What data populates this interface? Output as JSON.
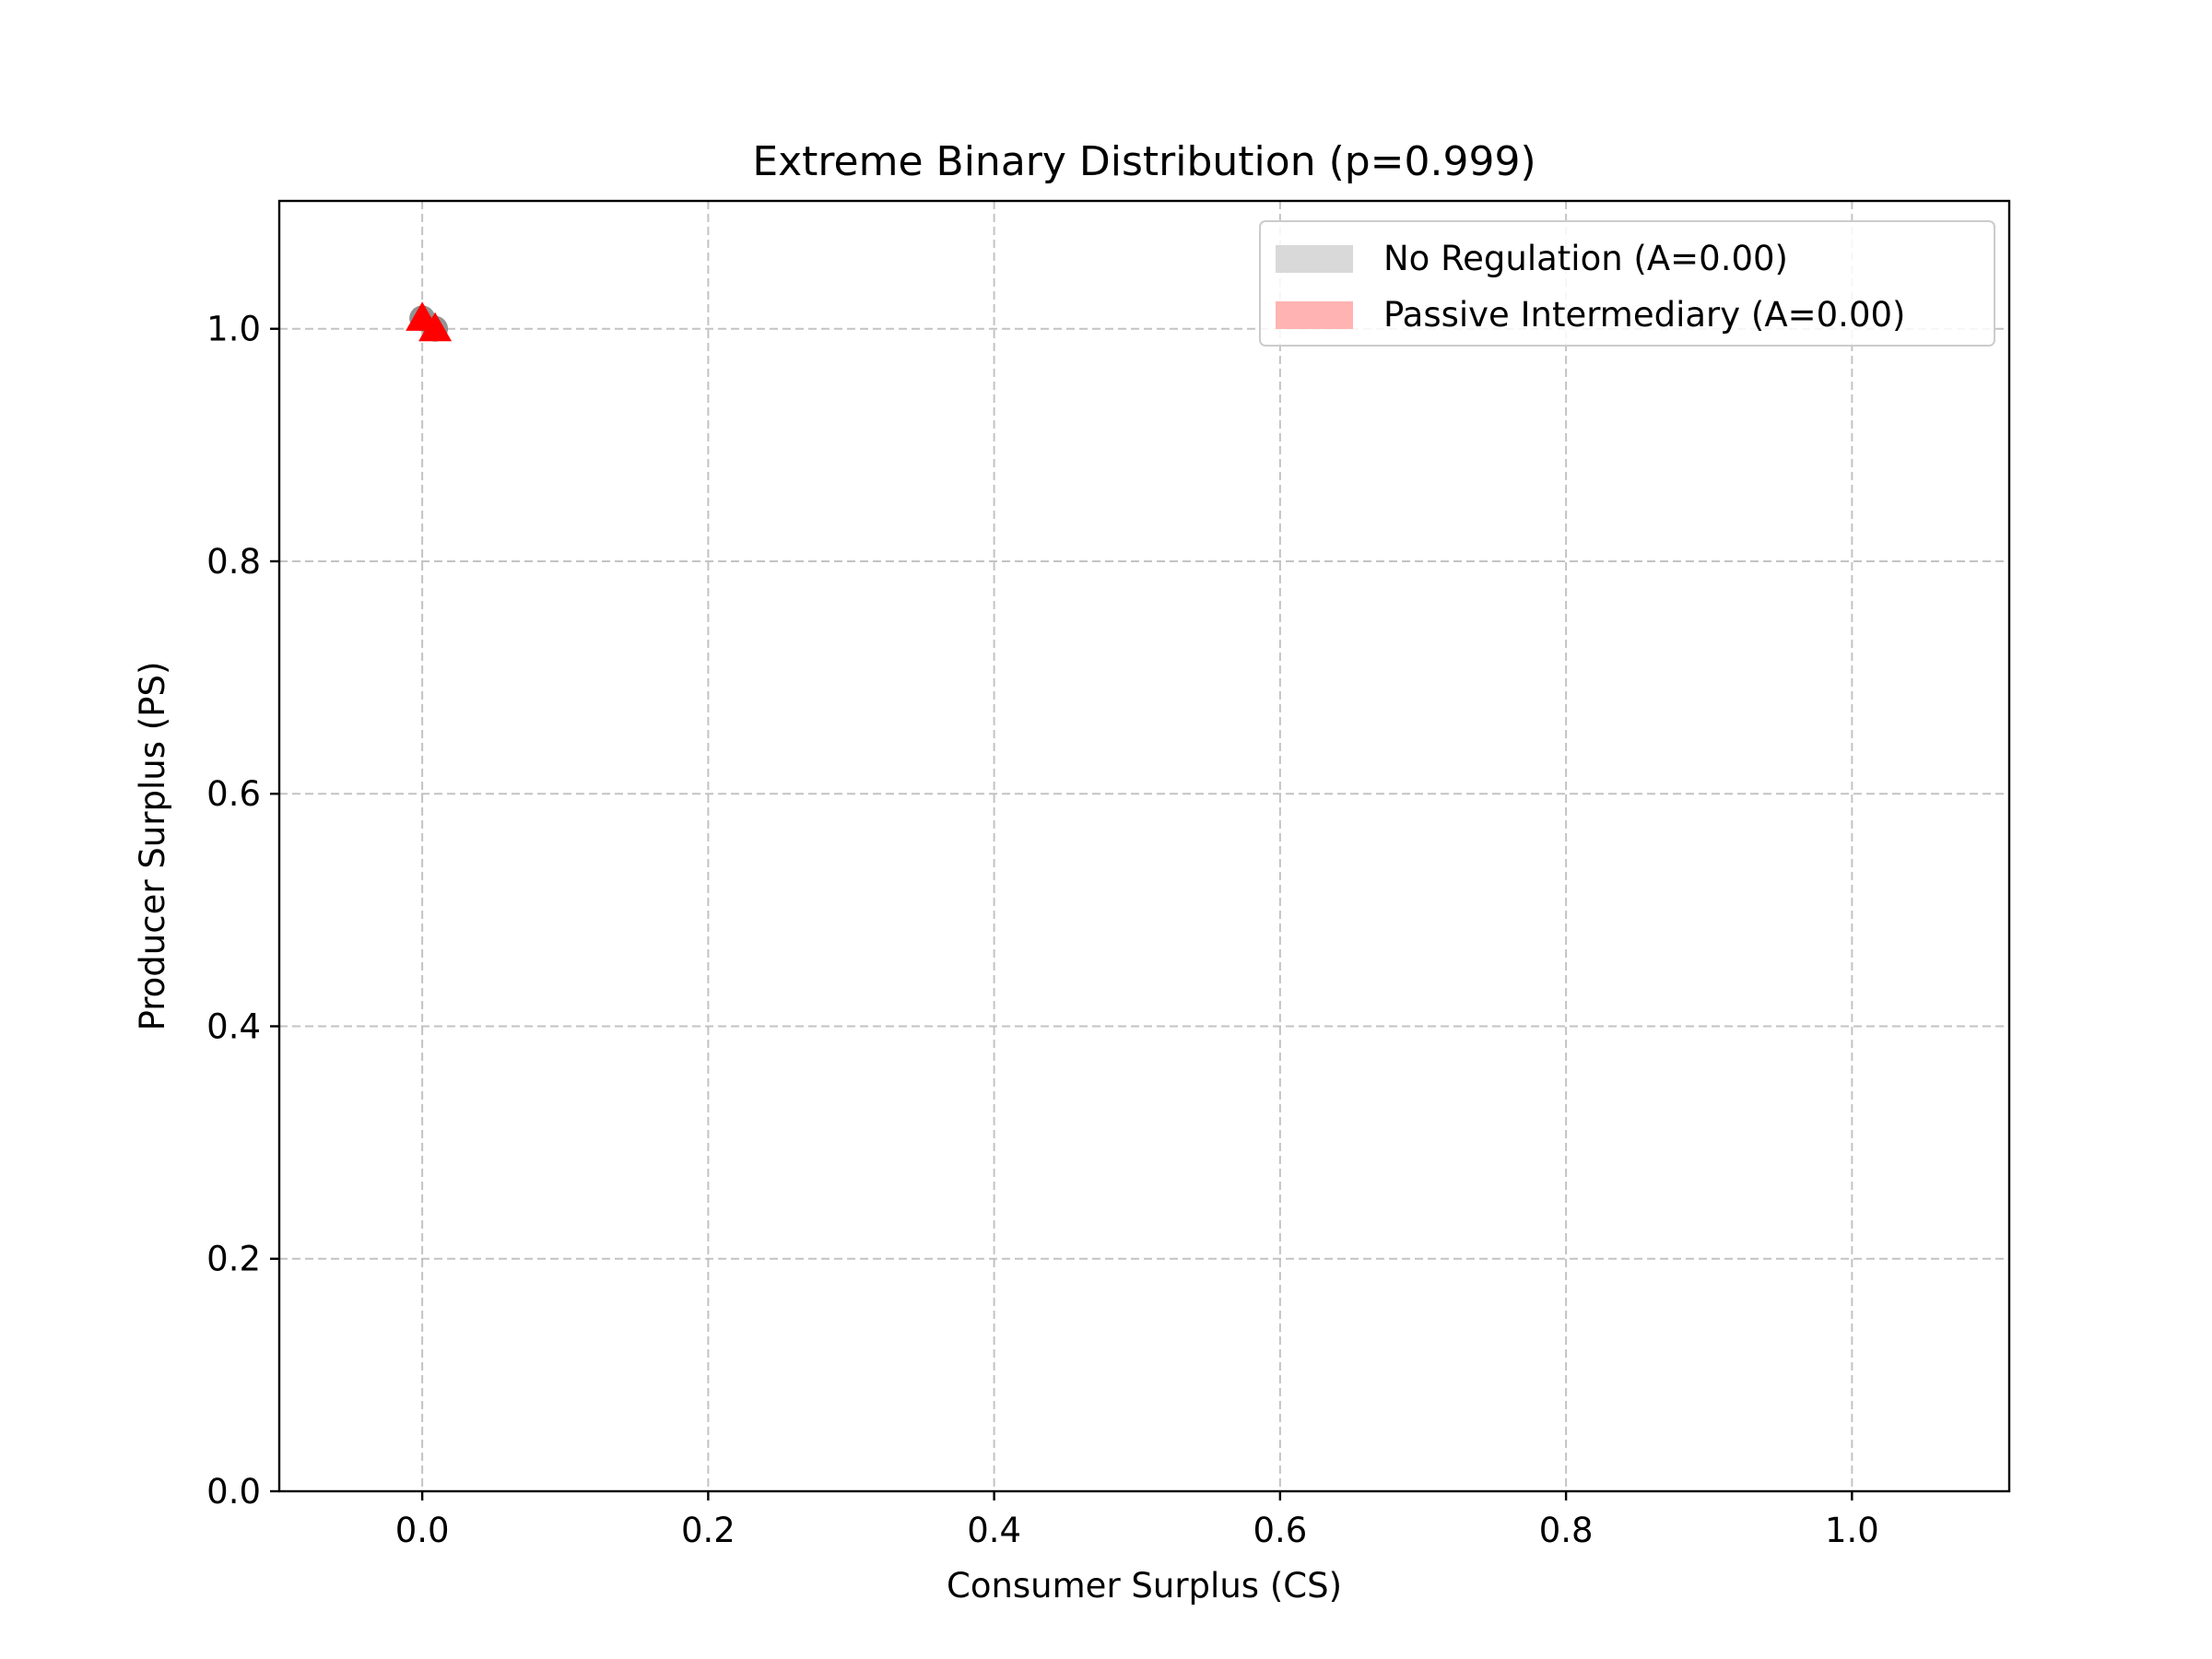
{
  "chart_data": {
    "type": "scatter",
    "title": "Extreme Binary Distribution (p=0.999)",
    "xlabel": "Consumer Surplus (CS)",
    "ylabel": "Producer Surplus (PS)",
    "xlim": [
      -0.1,
      1.11
    ],
    "ylim": [
      0.0,
      1.11
    ],
    "xticks": [
      0.0,
      0.2,
      0.4,
      0.6,
      0.8,
      1.0
    ],
    "yticks": [
      0.0,
      0.2,
      0.4,
      0.6,
      0.8,
      1.0
    ],
    "xtick_labels": [
      "0.0",
      "0.2",
      "0.4",
      "0.6",
      "0.8",
      "1.0"
    ],
    "ytick_labels": [
      "0.0",
      "0.2",
      "0.4",
      "0.6",
      "0.8",
      "1.0"
    ],
    "grid": true,
    "legend_position": "top-right",
    "series": [
      {
        "name": "No Regulation (A=0.00)",
        "marker": "circle",
        "color": "#808080",
        "legend_color": "#d9d9d9",
        "points": [
          {
            "x": 0.0,
            "y": 1.009
          },
          {
            "x": 0.009,
            "y": 1.0
          }
        ]
      },
      {
        "name": "Passive Intermediary (A=0.00)",
        "marker": "triangle",
        "color": "#ff0000",
        "legend_color": "#ffb3b3",
        "points": [
          {
            "x": 0.0,
            "y": 1.009
          },
          {
            "x": 0.009,
            "y": 1.0
          }
        ]
      }
    ]
  }
}
